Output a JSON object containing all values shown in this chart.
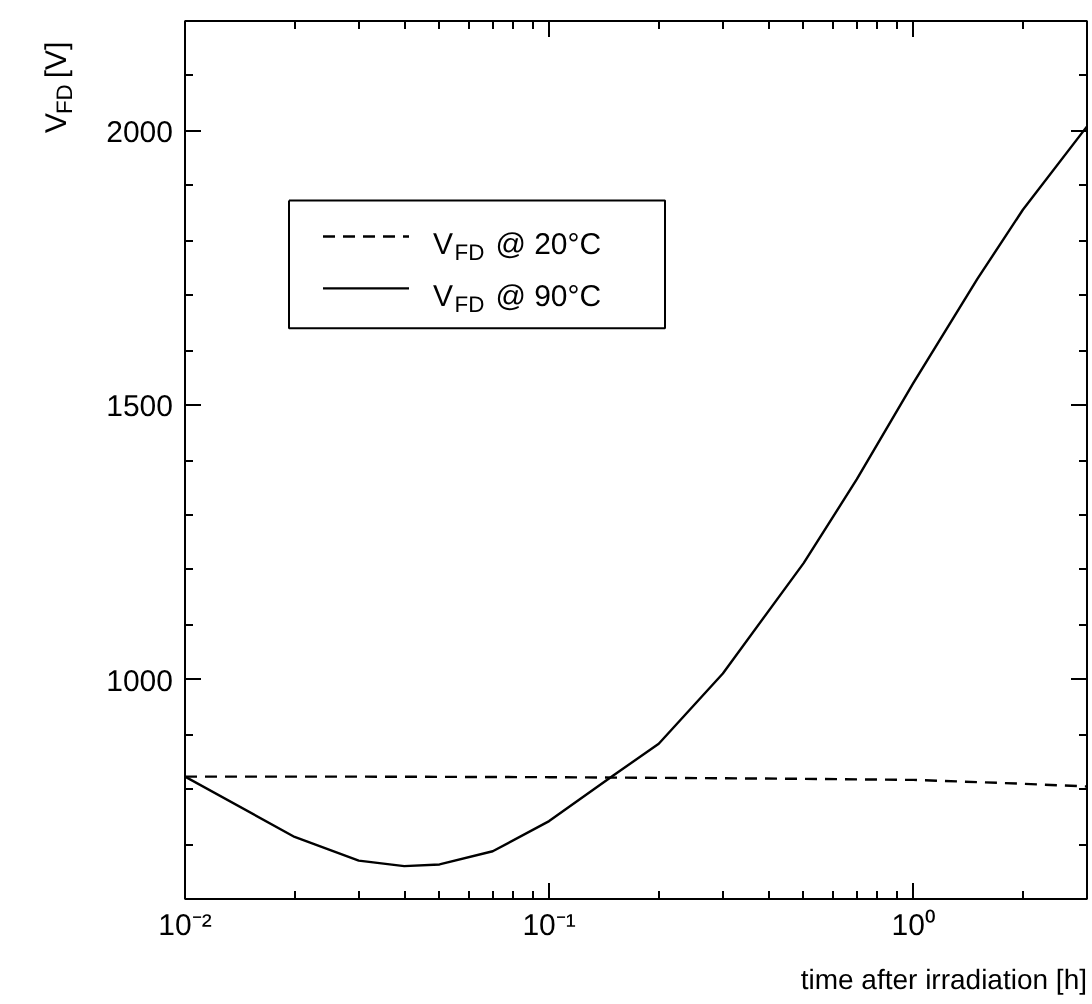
{
  "chart_data": {
    "type": "line",
    "xlabel": "time after irradiation [h]",
    "ylabel": "V$_{FD}$ [V]",
    "log": "x",
    "xlim": [
      0.01,
      3
    ],
    "ylim": [
      600,
      2200
    ],
    "xticks": [
      {
        "value": 0.01,
        "label": "10⁻²"
      },
      {
        "value": 0.1,
        "label": "10⁻¹"
      },
      {
        "value": 1,
        "label": "10⁰"
      }
    ],
    "yticks": [
      1000,
      1500,
      2000
    ],
    "legend": "top left",
    "series": [
      {
        "name": "V$_{FD}$ @ 20°C",
        "color": "#000000",
        "line_style": "dashed",
        "x": [
          0.01,
          0.03,
          0.1,
          0.3,
          0.5,
          1,
          1.5,
          2,
          3
        ],
        "values": [
          823,
          823,
          822,
          820,
          819,
          817,
          813,
          810,
          805
        ]
      },
      {
        "name": "V$_{FD}$ @ 90°C",
        "color": "#000000",
        "line_style": "solid",
        "x": [
          0.01,
          0.02,
          0.03,
          0.04,
          0.05,
          0.07,
          0.1,
          0.15,
          0.2,
          0.3,
          0.5,
          0.7,
          1,
          1.5,
          2,
          3
        ],
        "values": [
          823,
          713,
          670,
          660,
          663,
          687,
          742,
          825,
          883,
          1011,
          1212,
          1365,
          1540,
          1730,
          1856,
          2008
        ]
      }
    ]
  }
}
